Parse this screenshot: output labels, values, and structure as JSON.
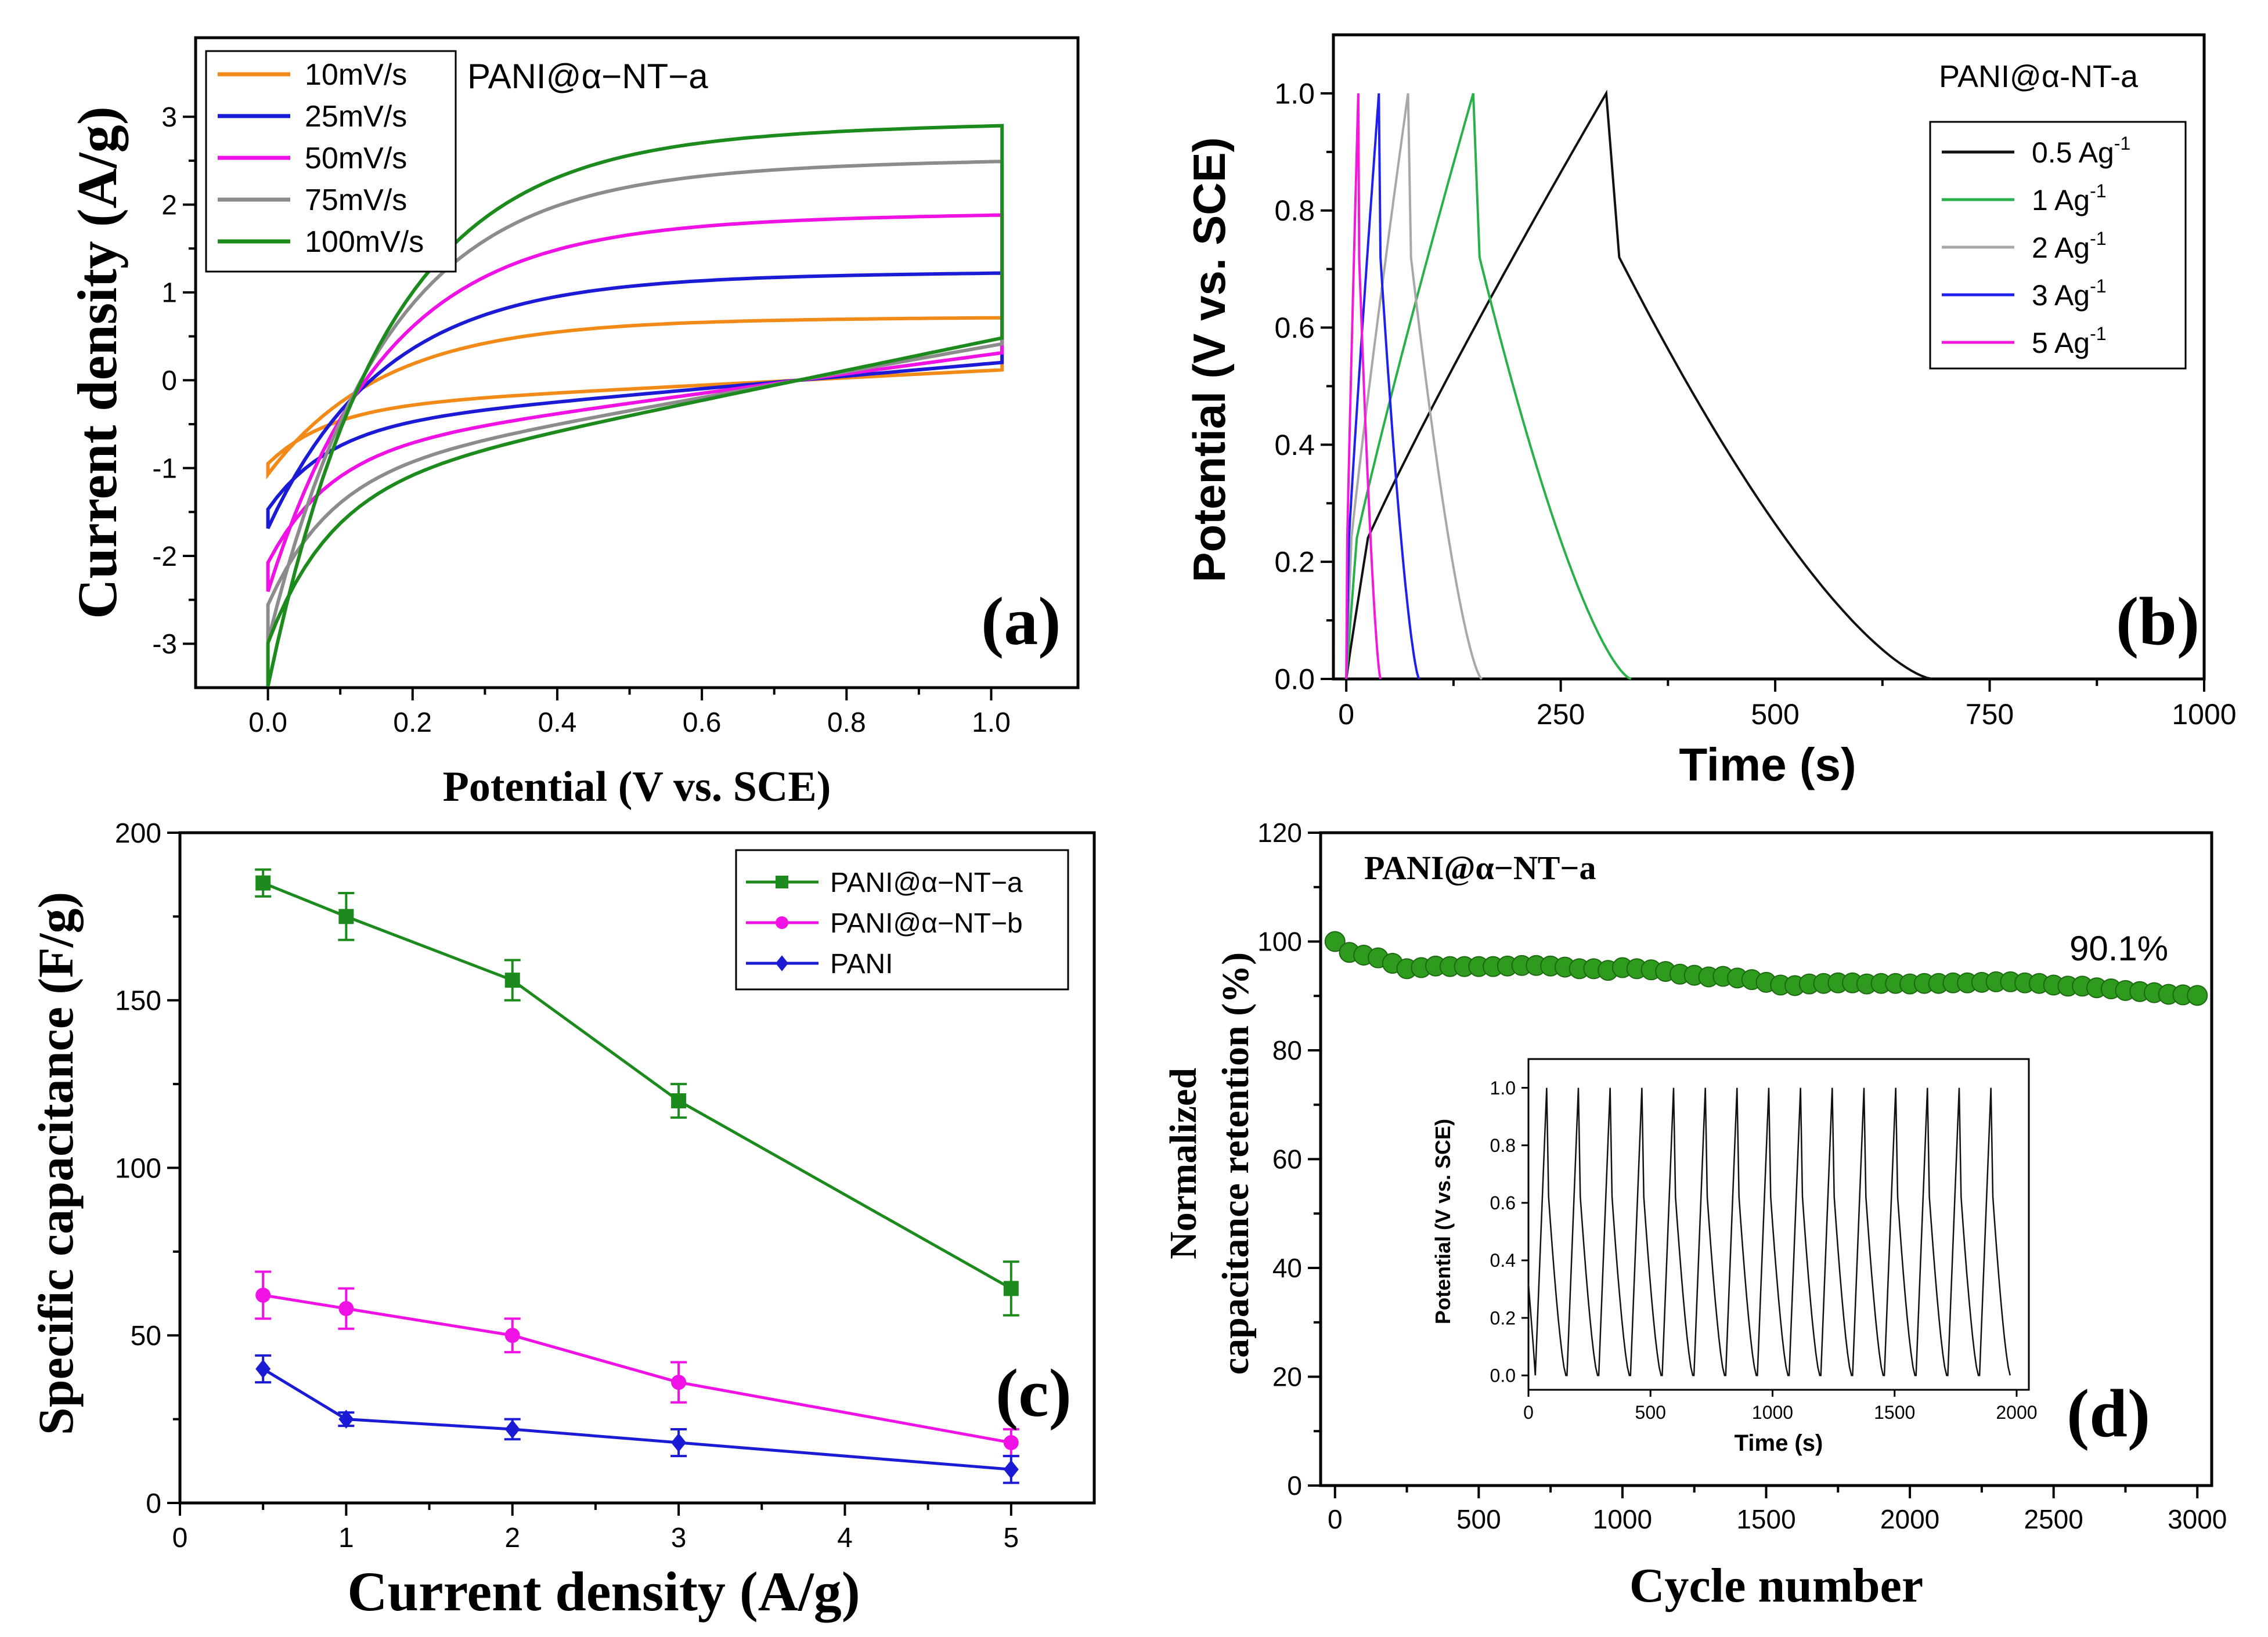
{
  "chart_data": [
    {
      "type": "line",
      "panel_label": "(a)",
      "annotation": "PANI@α−NT−a",
      "xlabel": "Potential (V vs. SCE)",
      "ylabel": "Current density (A/g)",
      "xlim": [
        -0.1,
        1.12
      ],
      "ylim": [
        -3.5,
        3.9
      ],
      "xticks": [
        "0.0",
        "0.2",
        "0.4",
        "0.6",
        "0.8",
        "1.0"
      ],
      "yticks": [
        "-3",
        "-2",
        "-1",
        "0",
        "1",
        "2",
        "3"
      ],
      "legend_position": "top-left",
      "series": [
        {
          "name": "10mV/s",
          "color": "#f28a18",
          "peak_anodic": 0.7,
          "min_cathodic": -1.1
        },
        {
          "name": "25mV/s",
          "color": "#1b1bd6",
          "peak_anodic": 1.2,
          "min_cathodic": -1.7
        },
        {
          "name": "50mV/s",
          "color": "#f012e4",
          "peak_anodic": 1.85,
          "min_cathodic": -2.4
        },
        {
          "name": "75mV/s",
          "color": "#8c8c8c",
          "peak_anodic": 2.45,
          "min_cathodic": -2.95
        },
        {
          "name": "100mV/s",
          "color": "#1c8a1c",
          "peak_anodic": 2.85,
          "min_cathodic": -3.45
        }
      ]
    },
    {
      "type": "line",
      "panel_label": "(b)",
      "annotation": "PANI@α-NT-a",
      "xlabel": "Time (s)",
      "ylabel": "Potential (V vs. SCE)",
      "xlim": [
        -15,
        1000
      ],
      "ylim": [
        0,
        1.1
      ],
      "xticks": [
        "0",
        "250",
        "500",
        "750",
        "1000"
      ],
      "yticks": [
        "0.0",
        "0.2",
        "0.4",
        "0.6",
        "0.8",
        "1.0"
      ],
      "legend_position": "top-right",
      "legend_unit": "Ag",
      "legend_exponent": "-1",
      "series": [
        {
          "name": "0.5",
          "color": "#111111",
          "charge_end_s": 303,
          "discharge_end_s": 683
        },
        {
          "name": "1",
          "color": "#28b04a",
          "charge_end_s": 148,
          "discharge_end_s": 332
        },
        {
          "name": "2",
          "color": "#a8a8a8",
          "charge_end_s": 72,
          "discharge_end_s": 158
        },
        {
          "name": "3",
          "color": "#2020ee",
          "charge_end_s": 38,
          "discharge_end_s": 85
        },
        {
          "name": "5",
          "color": "#f418dc",
          "charge_end_s": 14,
          "discharge_end_s": 40
        }
      ]
    },
    {
      "type": "line",
      "panel_label": "(c)",
      "xlabel": "Current density (A/g)",
      "ylabel": "Specific capacitance (F/g)",
      "xlim": [
        0,
        5.5
      ],
      "ylim": [
        0,
        200
      ],
      "xticks": [
        "0",
        "1",
        "2",
        "3",
        "4",
        "5"
      ],
      "yticks": [
        "0",
        "50",
        "100",
        "150",
        "200"
      ],
      "legend_position": "top-right",
      "categories": [
        0.5,
        1,
        2,
        3,
        5
      ],
      "series": [
        {
          "name": "PANI@α−NT−a",
          "color": "#1c8a1c",
          "marker": "square",
          "values": [
            185,
            175,
            156,
            120,
            64
          ],
          "errors": [
            4,
            7,
            6,
            5,
            8
          ]
        },
        {
          "name": "PANI@α−NT−b",
          "color": "#f012e4",
          "marker": "circle",
          "values": [
            62,
            58,
            50,
            36,
            18
          ],
          "errors": [
            7,
            6,
            5,
            6,
            4
          ]
        },
        {
          "name": "PANI",
          "color": "#1b1bd6",
          "marker": "diamond",
          "values": [
            40,
            25,
            22,
            18,
            10
          ],
          "errors": [
            4,
            2,
            3,
            4,
            4
          ]
        }
      ]
    },
    {
      "type": "scatter",
      "panel_label": "(d)",
      "annotation": "PANI@α−NT−a",
      "final_retention_label": "90.1%",
      "xlabel": "Cycle number",
      "ylabel_line1": "Normalized",
      "ylabel_line2": "capacitance retention (%)",
      "xlim": [
        -50,
        3050
      ],
      "ylim": [
        0,
        120
      ],
      "xticks": [
        "0",
        "500",
        "1000",
        "1500",
        "2000",
        "2500",
        "3000"
      ],
      "yticks": [
        "0",
        "20",
        "40",
        "60",
        "80",
        "100",
        "120"
      ],
      "color": "#2e9a1e",
      "x": [
        0,
        50,
        100,
        150,
        200,
        250,
        300,
        350,
        400,
        450,
        500,
        550,
        600,
        650,
        700,
        750,
        800,
        850,
        900,
        950,
        1000,
        1050,
        1100,
        1150,
        1200,
        1250,
        1300,
        1350,
        1400,
        1450,
        1500,
        1550,
        1600,
        1650,
        1700,
        1750,
        1800,
        1850,
        1900,
        1950,
        2000,
        2050,
        2100,
        2150,
        2200,
        2250,
        2300,
        2350,
        2400,
        2450,
        2500,
        2550,
        2600,
        2650,
        2700,
        2750,
        2800,
        2850,
        2900,
        2950,
        3000
      ],
      "values": [
        100,
        98,
        97.5,
        97,
        96,
        95,
        95.2,
        95.5,
        95.4,
        95.4,
        95.4,
        95.4,
        95.5,
        95.6,
        95.6,
        95.5,
        95.3,
        95,
        95,
        94.7,
        95.2,
        95,
        94.8,
        94.5,
        94,
        93.8,
        93.5,
        93.6,
        93.3,
        93,
        92.5,
        92,
        91.9,
        92.2,
        92.3,
        92.4,
        92.4,
        92.2,
        92.3,
        92.3,
        92.2,
        92.3,
        92.3,
        92.4,
        92.4,
        92.5,
        92.6,
        92.6,
        92.4,
        92.3,
        92,
        91.8,
        91.8,
        91.5,
        91.3,
        91,
        90.8,
        90.6,
        90.3,
        90.2,
        90.1
      ],
      "inset": {
        "type": "line",
        "xlabel": "Time (s)",
        "ylabel": "Potential (V vs. SCE)",
        "xlim": [
          0,
          2050
        ],
        "ylim": [
          -0.05,
          1.1
        ],
        "xticks": [
          "0",
          "500",
          "1000",
          "1500",
          "2000"
        ],
        "yticks": [
          "0.0",
          "0.2",
          "0.4",
          "0.6",
          "0.8",
          "1.0"
        ],
        "color": "#111111",
        "cycle_count": 15,
        "cycle_period_s": 130
      }
    }
  ]
}
